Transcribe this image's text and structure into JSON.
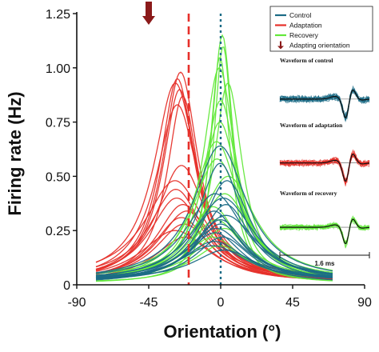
{
  "chart_data": {
    "type": "line",
    "xlabel": "Orientation (°)",
    "ylabel": "Firing rate (Hz)",
    "xlim": [
      -90,
      90
    ],
    "ylim": [
      0,
      1.25
    ],
    "x_ticks": [
      -90,
      -45,
      0,
      45,
      90
    ],
    "y_ticks": [
      0,
      0.25,
      0.5,
      0.75,
      1.0,
      1.25
    ],
    "x_tick_labels": [
      "-90",
      "-45",
      "0",
      "45",
      "90"
    ],
    "y_tick_labels": [
      "0",
      "0.25",
      "0.50",
      "0.75",
      "1.00",
      "1.25"
    ],
    "grid": false,
    "legend_position": "top-right",
    "colors": {
      "control": "#1b6b86",
      "adaptation": "#e6302a",
      "recovery": "#62e83a",
      "arrow": "#8b1a1a"
    },
    "series": [
      {
        "name": "Control",
        "peak_x": 0,
        "peak_values": [
          0.64,
          0.56,
          0.48,
          0.42,
          0.4,
          0.37,
          0.34,
          0.32,
          0.3,
          0.28,
          0.26,
          0.24,
          0.22,
          0.2,
          0.18,
          0.16
        ]
      },
      {
        "name": "Adaptation",
        "peak_x": -25,
        "peak_values": [
          0.98,
          0.95,
          0.93,
          0.9,
          0.87,
          0.83,
          0.55,
          0.48,
          0.44,
          0.4,
          0.37,
          0.34,
          0.31,
          0.28,
          0.25,
          0.22
        ]
      },
      {
        "name": "Recovery",
        "peak_x": 0,
        "peak_values": [
          1.15,
          1.1,
          1.05,
          1.0,
          0.93,
          0.85,
          0.75,
          0.66,
          0.58,
          0.5,
          0.42,
          0.36,
          0.3,
          0.26,
          0.22,
          0.18
        ]
      }
    ],
    "reference_lines": [
      {
        "x": -20,
        "color": "adaptation",
        "style": "dashed"
      },
      {
        "x": 0,
        "color": "control",
        "style": "dotted"
      }
    ],
    "annotations": {
      "adapting_orientation_x": -45
    },
    "legend": {
      "items": [
        {
          "label": "Control",
          "kind": "line",
          "color": "control"
        },
        {
          "label": "Adaptation",
          "kind": "line",
          "color": "adaptation"
        },
        {
          "label": "Recovery",
          "kind": "line",
          "color": "recovery"
        },
        {
          "label": "Adapting orientation",
          "kind": "arrow",
          "color": "arrow"
        }
      ]
    },
    "insets": [
      {
        "title": "Waveform of control",
        "color": "control"
      },
      {
        "title": "Waveform of adaptation",
        "color": "adaptation"
      },
      {
        "title": "Waveform of recovery",
        "color": "recovery"
      }
    ],
    "scale_bar_label": "1.6 ms"
  }
}
